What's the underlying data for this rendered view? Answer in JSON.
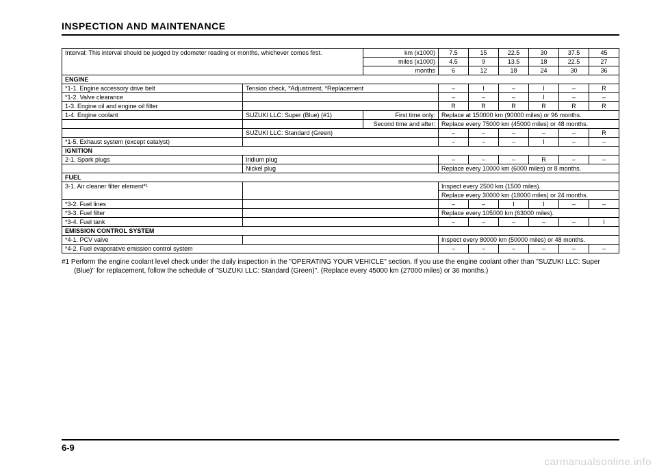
{
  "title": "INSPECTION AND MAINTENANCE",
  "header": {
    "interval_text": "Interval: This interval should be judged by odometer reading or months, whichever comes first.",
    "row_km_label": "km (x1000)",
    "row_km": [
      "7.5",
      "15",
      "22.5",
      "30",
      "37.5",
      "45"
    ],
    "row_miles_label": "miles (x1000)",
    "row_miles": [
      "4.5",
      "9",
      "13.5",
      "18",
      "22.5",
      "27"
    ],
    "row_months_label": "months",
    "row_months": [
      "6",
      "12",
      "18",
      "24",
      "30",
      "36"
    ]
  },
  "engine": {
    "head": "ENGINE",
    "r1_label": "*1-1. Engine accessory drive belt",
    "r1_note": "Tension check, *Adjustment, *Replacement",
    "r1": [
      "–",
      "I",
      "–",
      "I",
      "–",
      "R"
    ],
    "r2_label": "*1-2. Valve clearance",
    "r2": [
      "–",
      "–",
      "–",
      "I",
      "–",
      "–"
    ],
    "r3_label": "1-3. Engine oil and engine oil filter",
    "r3": [
      "R",
      "R",
      "R",
      "R",
      "R",
      "R"
    ],
    "r4_label": "1-4. Engine coolant",
    "r4_note1": "SUZUKI LLC: Super (Blue) (#1)",
    "r4_right1a": "First time only:",
    "r4_right1b": "Replace at 150000 km (90000 miles) or 96 months.",
    "r4_right2a": "Second time and after:",
    "r4_right2b": "Replace every 75000 km (45000 miles) or 48 months.",
    "r4_note2": "SUZUKI LLC: Standard (Green)",
    "r4b": [
      "–",
      "–",
      "–",
      "–",
      "–",
      "R"
    ],
    "r5_label": "*1-5. Exhaust system (except catalyst)",
    "r5": [
      "–",
      "–",
      "–",
      "I",
      "–",
      "–"
    ]
  },
  "ignition": {
    "head": "IGNITION",
    "r1_label": "2-1. Spark plugs",
    "r1_note": "Iridium plug",
    "r1": [
      "–",
      "–",
      "–",
      "R",
      "–",
      "–"
    ],
    "r2_note": "Nickel plug",
    "r2_text": "Replace every 10000 km (6000 miles) or 8 months."
  },
  "fuel": {
    "head": "FUEL",
    "r1_label": "3-1. Air cleaner filter element*¹",
    "r1_text1": "Inspect every 2500 km (1500 miles).",
    "r1_text2": "Replace every 30000 km (18000 miles) or 24 months.",
    "r2_label": "*3-2. Fuel lines",
    "r2": [
      "–",
      "–",
      "I",
      "I",
      "–",
      "–"
    ],
    "r3_label": "*3-3. Fuel filter",
    "r3_text": "Replace every 105000 km (63000 miles).",
    "r4_label": "*3-4. Fuel tank",
    "r4": [
      "–",
      "–",
      "–",
      "–",
      "–",
      "I"
    ]
  },
  "emission": {
    "head": "EMISSION CONTROL SYSTEM",
    "r1_label": "*4-1. PCV valve",
    "r1_text": "Inspect every 80000 km (50000 miles) or 48 months.",
    "r2_label": "*4-2. Fuel evaporative emission control system",
    "r2": [
      "–",
      "–",
      "–",
      "–",
      "–",
      "–"
    ]
  },
  "footnote": "#1  Perform the engine coolant level check under the daily inspection in the \"OPERATING YOUR VEHICLE\" section. If you use the engine coolant other than \"SUZUKI LLC: Super (Blue)\" for replacement, follow the schedule of \"SUZUKI LLC: Standard (Green)\". (Replace every 45000 km (27000 miles) or 36 months.)",
  "pagenum": "6-9",
  "watermark": "carmanualsonline.info"
}
